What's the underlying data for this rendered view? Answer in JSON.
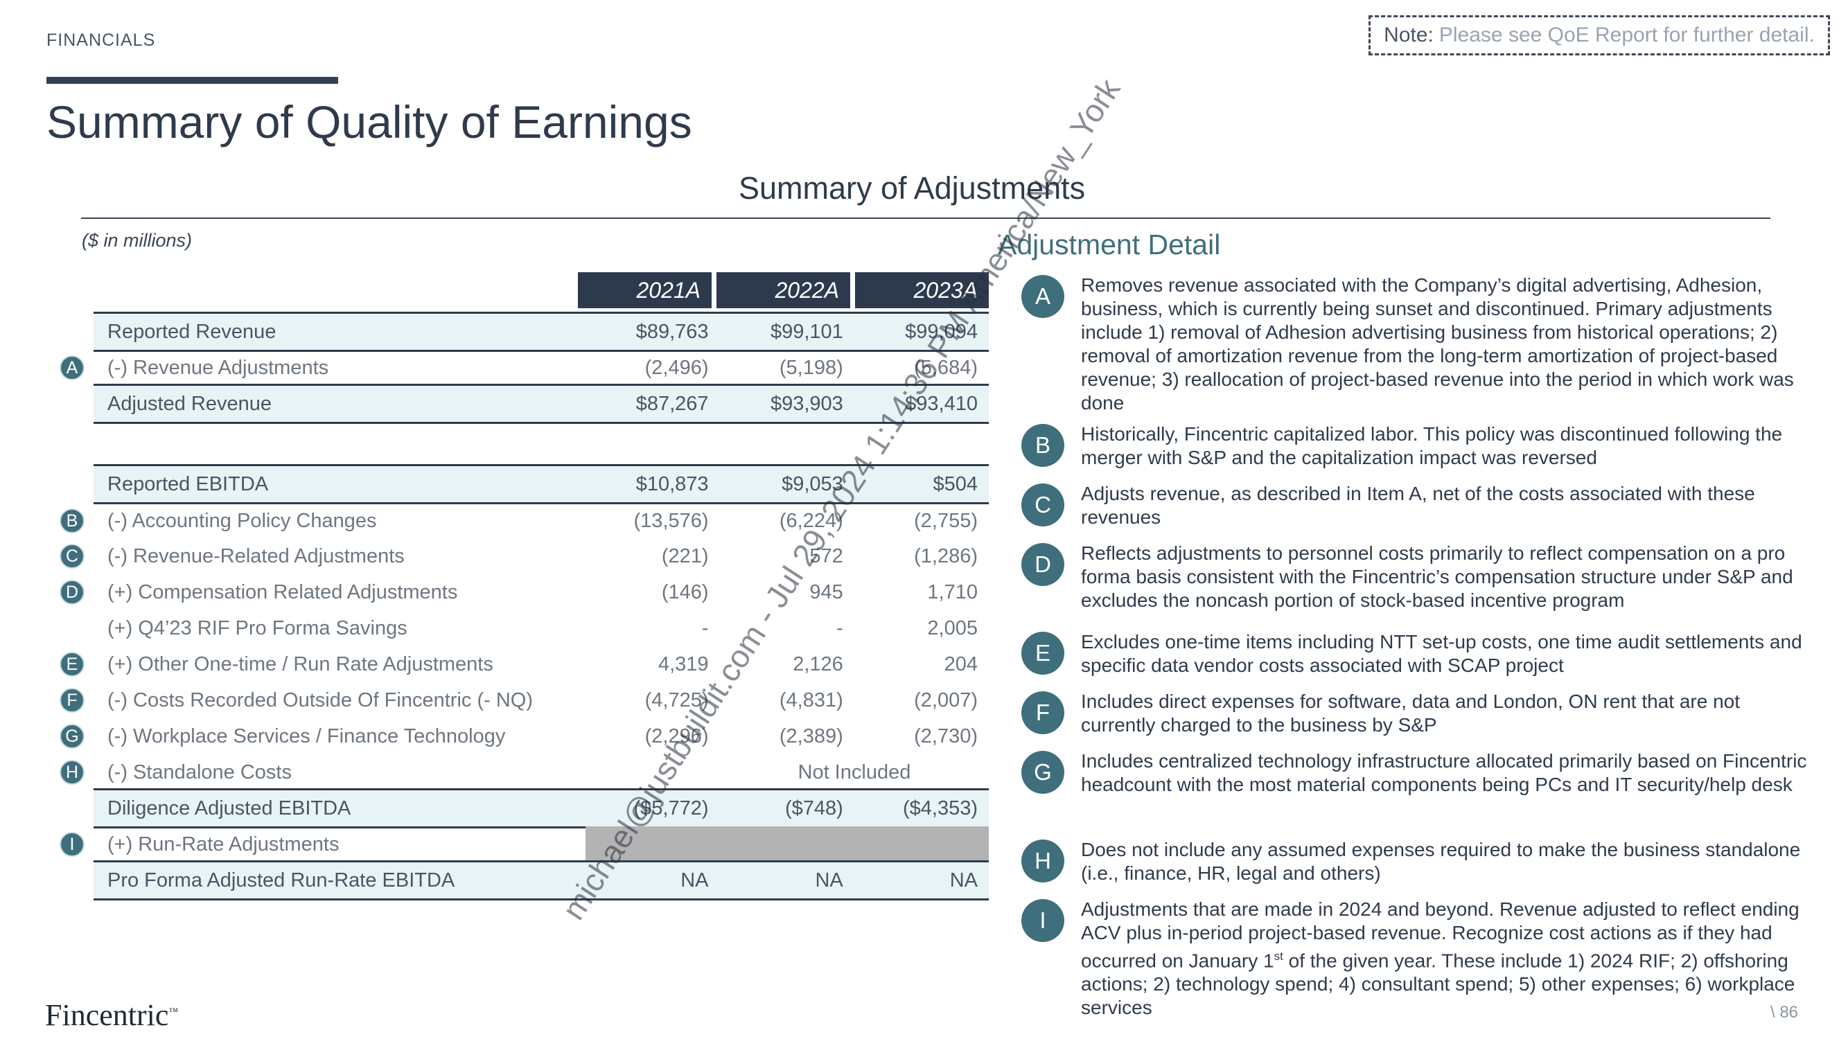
{
  "header": {
    "section": "FINANCIALS",
    "note_label": "Note:",
    "note_text": "Please see QoE Report for further detail.",
    "title": "Summary of Quality of Earnings",
    "subtitle": "Summary of Adjustments",
    "units": "($ in millions)"
  },
  "table": {
    "years": [
      "2021A",
      "2022A",
      "2023A"
    ],
    "rows": [
      {
        "marker": "",
        "label": "Reported Revenue",
        "values": [
          "$89,763",
          "$99,101",
          "$99,094"
        ],
        "highlight": true
      },
      {
        "marker": "A",
        "label": "(-) Revenue Adjustments",
        "values": [
          "(2,496)",
          "(5,198)",
          "(5,684)"
        ],
        "highlight": false
      },
      {
        "marker": "",
        "label": "Adjusted Revenue",
        "values": [
          "$87,267",
          "$93,903",
          "$93,410"
        ],
        "highlight": true
      },
      {
        "marker": "",
        "label": "Reported EBITDA",
        "values": [
          "$10,873",
          "$9,053",
          "$504"
        ],
        "highlight": true
      },
      {
        "marker": "B",
        "label": "(-) Accounting Policy Changes",
        "values": [
          "(13,576)",
          "(6,224)",
          "(2,755)"
        ],
        "highlight": false
      },
      {
        "marker": "C",
        "label": "(-) Revenue-Related Adjustments",
        "values": [
          "(221)",
          "572",
          "(1,286)"
        ],
        "highlight": false
      },
      {
        "marker": "D",
        "label": "(+) Compensation Related Adjustments",
        "values": [
          "(146)",
          "945",
          "1,710"
        ],
        "highlight": false
      },
      {
        "marker": "",
        "label": "(+) Q4’23 RIF Pro Forma Savings",
        "values": [
          "-",
          "-",
          "2,005"
        ],
        "highlight": false
      },
      {
        "marker": "E",
        "label": "(+) Other One-time / Run Rate Adjustments",
        "values": [
          "4,319",
          "2,126",
          "204"
        ],
        "highlight": false
      },
      {
        "marker": "F",
        "label": "(-) Costs Recorded Outside Of Fincentric (- NQ)",
        "values": [
          "(4,725)",
          "(4,831)",
          "(2,007)"
        ],
        "highlight": false
      },
      {
        "marker": "G",
        "label": "(-) Workplace Services / Finance Technology",
        "values": [
          "(2,296)",
          "(2,389)",
          "(2,730)"
        ],
        "highlight": false
      },
      {
        "marker": "H",
        "label": "(-) Standalone Costs",
        "merged_value": "Not Included",
        "highlight": false
      },
      {
        "marker": "",
        "label": "Diligence Adjusted EBITDA",
        "values": [
          "($5,772)",
          "($748)",
          "($4,353)"
        ],
        "highlight": true
      },
      {
        "marker": "I",
        "label": "(+) Run-Rate Adjustments",
        "greyed": true,
        "highlight": false
      },
      {
        "marker": "",
        "label": "Pro Forma Adjusted Run-Rate EBITDA",
        "values": [
          "NA",
          "NA",
          "NA"
        ],
        "highlight": true
      }
    ]
  },
  "detail": {
    "heading": "Adjustment Detail",
    "items": [
      {
        "marker": "A",
        "text": "Removes revenue associated with the Company’s digital advertising, Adhesion, business, which is currently being sunset and discontinued. Primary adjustments include 1) removal of Adhesion advertising business from historical operations; 2) removal of amortization revenue from the long-term amortization of project-based revenue; 3) reallocation of project-based revenue into the period in which work was done"
      },
      {
        "marker": "B",
        "text": "Historically, Fincentric capitalized labor. This policy was discontinued following the merger with S&P and the capitalization impact was reversed"
      },
      {
        "marker": "C",
        "text": "Adjusts revenue, as described in Item A, net of the costs associated with these revenues"
      },
      {
        "marker": "D",
        "text": "Reflects adjustments to personnel costs primarily to reflect compensation on a pro forma basis consistent with the Fincentric’s compensation structure under S&P and excludes the noncash portion of stock-based incentive program"
      },
      {
        "marker": "E",
        "text": "Excludes one-time items including NTT set-up costs, one time audit settlements and specific data vendor costs associated with SCAP project"
      },
      {
        "marker": "F",
        "text": "Includes direct expenses for software, data and London, ON rent that are not currently charged to the business by S&P"
      },
      {
        "marker": "G",
        "text": "Includes centralized technology infrastructure allocated primarily based on Fincentric headcount with the most material components being PCs and IT security/help desk"
      },
      {
        "marker": "H",
        "text": "Does not include any assumed expenses required to make the business standalone (i.e., finance, HR, legal and others)"
      },
      {
        "marker": "I",
        "text_before": "Adjustments that are made in 2024 and beyond. Revenue adjusted to reflect ending ACV plus in-period project-based revenue. Recognize cost actions as if they had occurred on January 1",
        "sup": "st",
        "text_after": " of the given year. These include 1) 2024 RIF; 2) offshoring actions; 2) technology spend; 4) consultant spend; 5) other expenses; 6) workplace services"
      }
    ]
  },
  "footer": {
    "logo": "Fincentric",
    "tm": "™",
    "page": "\\ 86"
  },
  "watermark": "michael@justbuildit.com - Jul 29, 2024 1:14:36 PM America/New_York"
}
